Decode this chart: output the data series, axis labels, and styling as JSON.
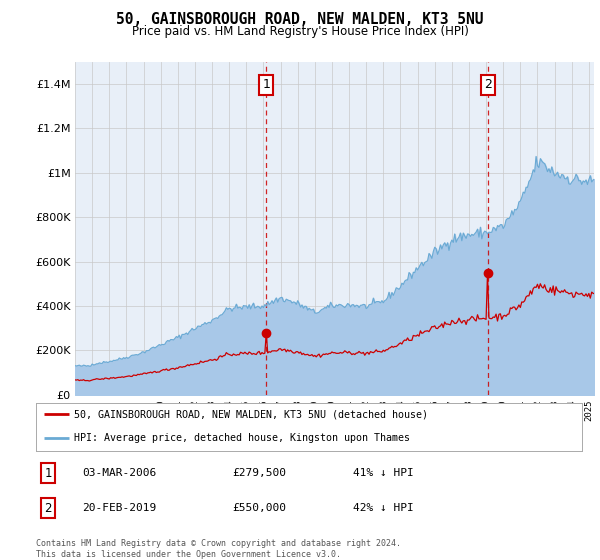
{
  "title": "50, GAINSBOROUGH ROAD, NEW MALDEN, KT3 5NU",
  "subtitle": "Price paid vs. HM Land Registry's House Price Index (HPI)",
  "hpi_color": "#a8c8e8",
  "hpi_line_color": "#6aaad4",
  "price_color": "#cc0000",
  "plot_bg": "#e8eff8",
  "legend_entry1": "50, GAINSBOROUGH ROAD, NEW MALDEN, KT3 5NU (detached house)",
  "legend_entry2": "HPI: Average price, detached house, Kingston upon Thames",
  "footnote": "Contains HM Land Registry data © Crown copyright and database right 2024.\nThis data is licensed under the Open Government Licence v3.0.",
  "transaction1_date": "03-MAR-2006",
  "transaction1_price": "£279,500",
  "transaction1_pct": "41% ↓ HPI",
  "transaction2_date": "20-FEB-2019",
  "transaction2_price": "£550,000",
  "transaction2_pct": "42% ↓ HPI",
  "ylim": [
    0,
    1500000
  ],
  "yticks": [
    0,
    200000,
    400000,
    600000,
    800000,
    1000000,
    1200000,
    1400000
  ],
  "transaction1_x": 2006.17,
  "transaction1_y": 279500,
  "transaction2_x": 2019.12,
  "transaction2_y": 550000,
  "xlim_start": 1995,
  "xlim_end": 2025.3
}
